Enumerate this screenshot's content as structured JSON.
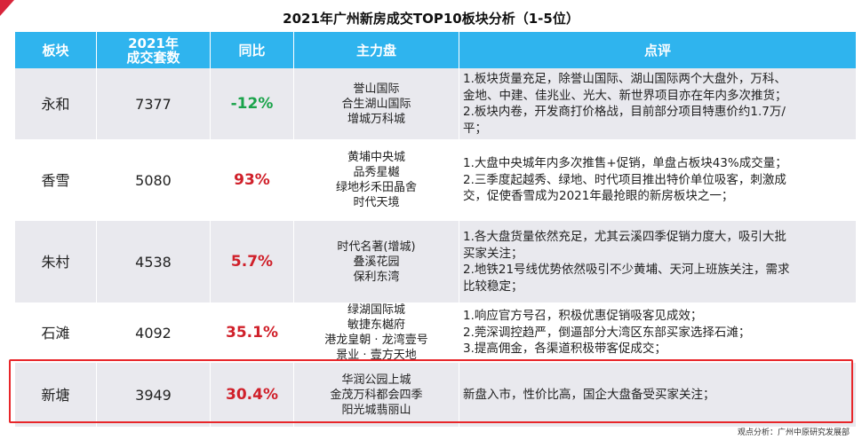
{
  "title": "2021年广州新房成交TOP10板块分析（1-5位）",
  "headers": [
    "板块",
    "2021年",
    "成交套数",
    "同比",
    "主力盘",
    "点评"
  ],
  "rows": [
    {
      "area": "永和",
      "count": "7377",
      "yoy": "-12%",
      "yoy_color": "#1aa34a",
      "projects": [
        "誉山国际",
        "合生湖山国际",
        "增城万科城"
      ],
      "comment": [
        "1.板块货量充足，除誉山国际、湖山国际两个大盘外，万科、",
        "金地、中建、佳兆业、光大、新世界项目亦在年内多次推货；",
        "2.板块内卷，开发商打价格战，目前部分项目特惠价约1.7万/",
        "平；"
      ]
    },
    {
      "area": "香雪",
      "count": "5080",
      "yoy": "93%",
      "yoy_color": "#d0202a",
      "projects": [
        "黄埔中央城",
        "品秀星樾",
        "绿地杉禾田晶舍",
        "时代天境"
      ],
      "comment": [
        "1.大盘中央城年内多次推售+促销，单盘占板块43%成交量；",
        "2.三季度起越秀、绿地、时代项目推出特价单位吸客，刺激成",
        "交，促使香雪成为2021年最抢眼的新房板块之一；"
      ]
    },
    {
      "area": "朱村",
      "count": "4538",
      "yoy": "5.7%",
      "yoy_color": "#d0202a",
      "projects": [
        "时代名著(增城)",
        "叠溪花园",
        "保利东湾"
      ],
      "comment": [
        "1.各大盘货量依然充足，尤其云溪四季促销力度大，吸引大批",
        "买家关注；",
        "2.地铁21号线优势依然吸引不少黄埔、天河上班族关注，需求",
        "比较稳定；"
      ]
    },
    {
      "area": "石滩",
      "count": "4092",
      "yoy": "35.1%",
      "yoy_color": "#d0202a",
      "projects": [
        "绿湖国际城",
        "敏捷东樾府",
        "港龙皇朝 · 龙湾壹号",
        "景业 · 壹方天地"
      ],
      "comment": [
        "1.响应官方号召，积极优惠促销吸客见成效；",
        "2.莞深调控趋严，倒逼部分大湾区东部买家选择石滩；",
        "3.提高佣金，各渠道积极带客促成交；"
      ]
    },
    {
      "area": "新塘",
      "count": "3949",
      "yoy": "30.4%",
      "yoy_color": "#d0202a",
      "projects": [
        "华润公园上城",
        "金茂万科都会四季",
        "阳光城翡丽山"
      ],
      "comment": [
        "新盘入市，性价比高，国企大盘备受买家关注；"
      ]
    }
  ],
  "footer": "观点分析：广州中原研究发展部"
}
